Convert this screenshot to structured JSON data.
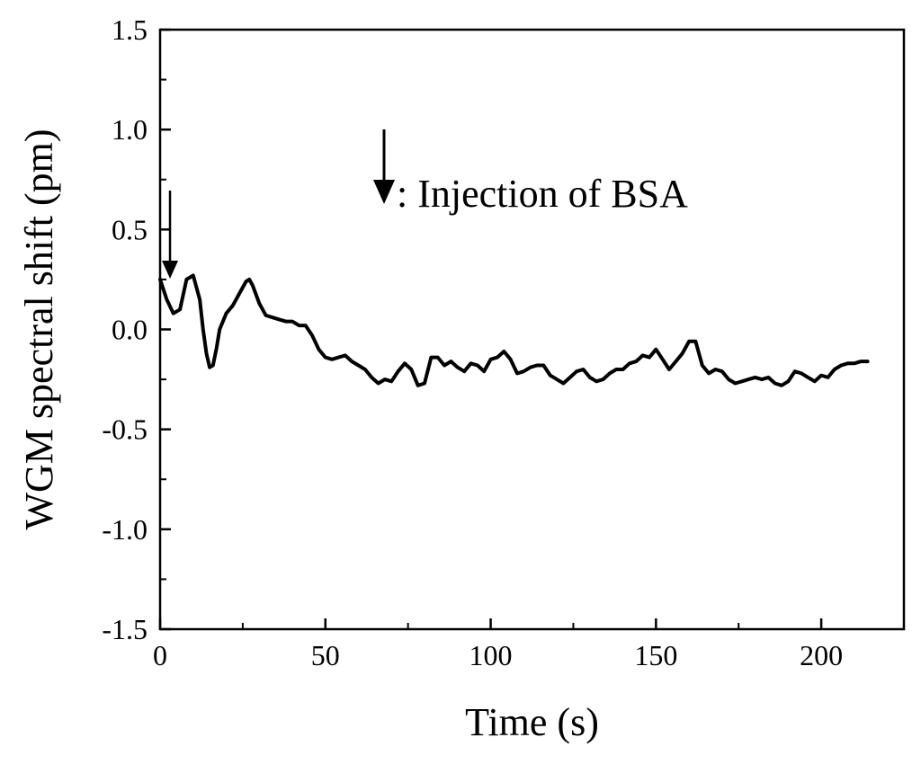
{
  "chart_data": {
    "type": "line",
    "title": "",
    "xlabel": "Time (s)",
    "ylabel": "WGM spectral shift (pm)",
    "xlim": [
      0,
      225
    ],
    "ylim": [
      -1.5,
      1.5
    ],
    "x_ticks": [
      0,
      50,
      100,
      150,
      200
    ],
    "x_tick_labels": [
      "0",
      "50",
      "100",
      "150",
      "200"
    ],
    "y_ticks": [
      -1.5,
      -1.0,
      -0.5,
      0.0,
      0.5,
      1.0,
      1.5
    ],
    "y_tick_labels": [
      "-1.5",
      "-1.0",
      "-0.5",
      "0.0",
      "0.5",
      "1.0",
      "1.5"
    ],
    "grid": false,
    "legend_text": ": Injection of BSA",
    "injection_time": 3,
    "series": [
      {
        "color": "#000000",
        "x": [
          0,
          2,
          4,
          6,
          8,
          10,
          12,
          13,
          14,
          15,
          16,
          17,
          18,
          20,
          22,
          24,
          26,
          27,
          28,
          30,
          32,
          34,
          36,
          38,
          40,
          42,
          44,
          46,
          48,
          50,
          52,
          54,
          56,
          58,
          60,
          62,
          64,
          66,
          68,
          70,
          72,
          74,
          76,
          78,
          80,
          82,
          84,
          86,
          88,
          90,
          92,
          94,
          96,
          98,
          100,
          102,
          104,
          106,
          108,
          110,
          112,
          114,
          116,
          118,
          120,
          122,
          124,
          126,
          128,
          130,
          132,
          134,
          136,
          138,
          140,
          142,
          144,
          146,
          148,
          150,
          152,
          154,
          156,
          158,
          160,
          162,
          164,
          166,
          168,
          170,
          172,
          174,
          176,
          178,
          180,
          182,
          184,
          186,
          188,
          190,
          192,
          194,
          196,
          198,
          200,
          202,
          204,
          206,
          208,
          210,
          212,
          214
        ],
        "y": [
          0.25,
          0.15,
          0.08,
          0.1,
          0.25,
          0.27,
          0.15,
          0.0,
          -0.12,
          -0.19,
          -0.18,
          -0.1,
          0.0,
          0.08,
          0.12,
          0.18,
          0.24,
          0.25,
          0.22,
          0.13,
          0.07,
          0.06,
          0.05,
          0.04,
          0.04,
          0.02,
          0.02,
          -0.03,
          -0.1,
          -0.14,
          -0.15,
          -0.14,
          -0.13,
          -0.16,
          -0.18,
          -0.2,
          -0.24,
          -0.27,
          -0.25,
          -0.26,
          -0.21,
          -0.17,
          -0.2,
          -0.28,
          -0.27,
          -0.14,
          -0.14,
          -0.18,
          -0.16,
          -0.19,
          -0.21,
          -0.17,
          -0.18,
          -0.21,
          -0.15,
          -0.14,
          -0.11,
          -0.15,
          -0.22,
          -0.21,
          -0.19,
          -0.18,
          -0.18,
          -0.23,
          -0.25,
          -0.27,
          -0.24,
          -0.21,
          -0.2,
          -0.24,
          -0.26,
          -0.25,
          -0.22,
          -0.2,
          -0.2,
          -0.17,
          -0.16,
          -0.13,
          -0.14,
          -0.1,
          -0.15,
          -0.2,
          -0.16,
          -0.12,
          -0.06,
          -0.06,
          -0.18,
          -0.22,
          -0.2,
          -0.21,
          -0.25,
          -0.27,
          -0.26,
          -0.25,
          -0.24,
          -0.25,
          -0.24,
          -0.27,
          -0.28,
          -0.26,
          -0.21,
          -0.22,
          -0.24,
          -0.26,
          -0.23,
          -0.24,
          -0.2,
          -0.18,
          -0.17,
          -0.17,
          -0.16,
          -0.16
        ]
      }
    ]
  }
}
